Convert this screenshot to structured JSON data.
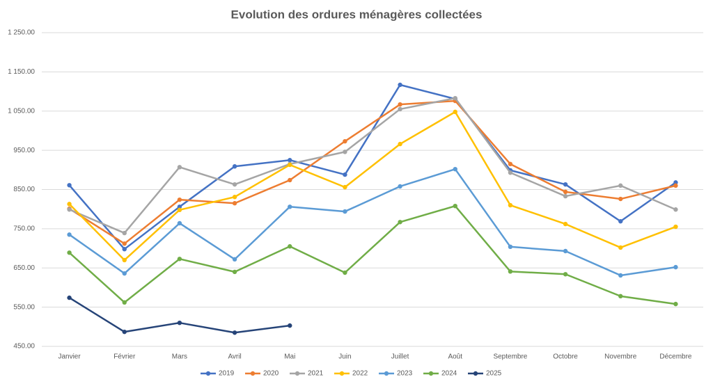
{
  "chart_data": {
    "type": "line",
    "title": "Evolution des ordures ménagères collectées",
    "categories": [
      "Janvier",
      "Février",
      "Mars",
      "Avril",
      "Mai",
      "Juin",
      "Juillet",
      "Août",
      "Septembre",
      "Octobre",
      "Novembre",
      "Décembre"
    ],
    "series": [
      {
        "name": "2019",
        "color": "#4472c4",
        "values": [
          861,
          698,
          806,
          909,
          925,
          888,
          1117,
          1081,
          899,
          863,
          769,
          868
        ]
      },
      {
        "name": "2020",
        "color": "#ed7d31",
        "values": [
          801,
          712,
          824,
          815,
          874,
          973,
          1067,
          1076,
          915,
          844,
          826,
          860
        ]
      },
      {
        "name": "2021",
        "color": "#a5a5a5",
        "values": [
          799,
          739,
          907,
          863,
          915,
          946,
          1055,
          1083,
          893,
          833,
          860,
          799
        ]
      },
      {
        "name": "2022",
        "color": "#ffc000",
        "values": [
          813,
          670,
          798,
          831,
          913,
          856,
          966,
          1048,
          810,
          762,
          702,
          755
        ]
      },
      {
        "name": "2023",
        "color": "#5b9bd5",
        "values": [
          735,
          636,
          764,
          672,
          806,
          794,
          858,
          902,
          704,
          693,
          631,
          652
        ]
      },
      {
        "name": "2024",
        "color": "#70ad47",
        "values": [
          689,
          562,
          673,
          640,
          705,
          638,
          767,
          808,
          641,
          634,
          578,
          558
        ]
      },
      {
        "name": "2025",
        "color": "#264478",
        "values": [
          574,
          487,
          510,
          485,
          503,
          null,
          null,
          null,
          null,
          null,
          null,
          null
        ]
      }
    ],
    "ylim": [
      450,
      1250
    ],
    "yticks": [
      {
        "value": 450,
        "label": "450.00"
      },
      {
        "value": 550,
        "label": "550.00"
      },
      {
        "value": 650,
        "label": "650.00"
      },
      {
        "value": 750,
        "label": "750.00"
      },
      {
        "value": 850,
        "label": "850.00"
      },
      {
        "value": 950,
        "label": "950.00"
      },
      {
        "value": 1050,
        "label": "1 050.00"
      },
      {
        "value": 1150,
        "label": "1 150.00"
      },
      {
        "value": 1250,
        "label": "1 250.00"
      }
    ],
    "grid": true,
    "legend": "bottom"
  }
}
